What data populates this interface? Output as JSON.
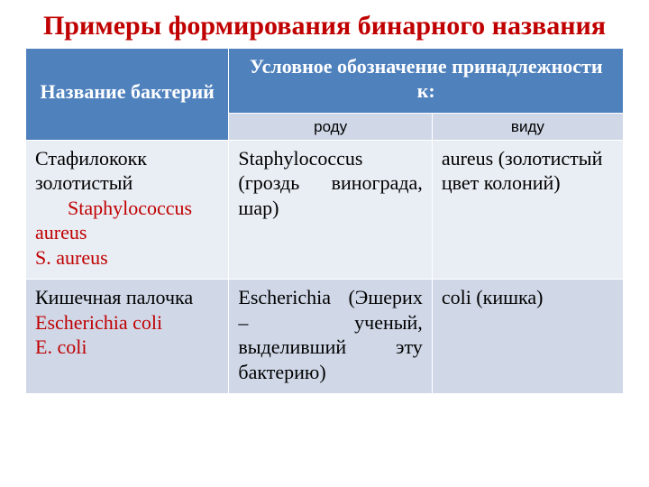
{
  "colors": {
    "title": "#c00000",
    "header_bg": "#4f81bd",
    "header_fg": "#ffffff",
    "subheader_bg": "#d0d8e8",
    "subheader_fg": "#000000",
    "row_a_bg": "#e9edf4",
    "row_b_bg": "#d0d8e8",
    "scientific": "#c00000",
    "text": "#000000"
  },
  "title": "Примеры формирования бинарного названия",
  "table": {
    "header_name": "Название бактерий",
    "header_group": "Условное обозначение принадлежности к:",
    "sub_genus": "роду",
    "sub_species": "виду",
    "rows": [
      {
        "name_ru": "Стафилококк золотистый",
        "name_sci_line1": "Staphylococcus",
        "name_sci_line2": "aureus",
        "name_sci_line3": "S. aureus",
        "genus": "Staphylococcus (гроздь винограда, шар)",
        "species": "aureus (золотистый цвет колоний)"
      },
      {
        "name_ru": "Кишечная палочка",
        "name_sci_line1": "Escherichia coli",
        "name_sci_line2": "E. coli",
        "name_sci_line3": "",
        "genus": "Escherichia (Эшерих – ученый, выделивший эту бактерию)",
        "species": "coli (кишка)"
      }
    ]
  }
}
